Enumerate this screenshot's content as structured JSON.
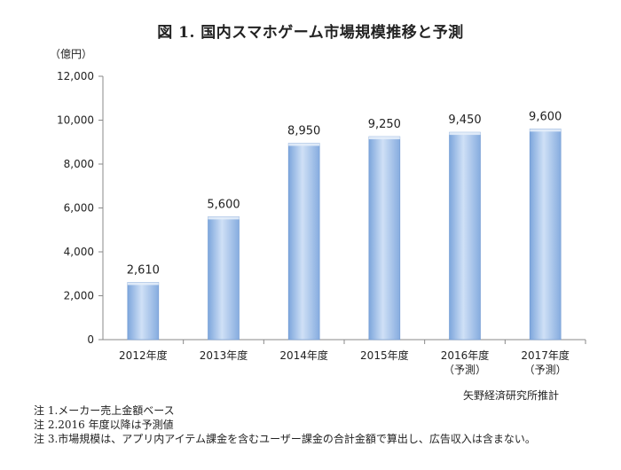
{
  "chart_data": {
    "type": "bar",
    "title": "図 1.  国内スマホゲーム市場規模推移と予測",
    "yunit": "（億円）",
    "ylim": [
      0,
      12000
    ],
    "yticks": [
      0,
      2000,
      4000,
      6000,
      8000,
      10000,
      12000
    ],
    "ytick_labels": [
      "0",
      "2,000",
      "4,000",
      "6,000",
      "8,000",
      "10,000",
      "12,000"
    ],
    "categories": [
      [
        "2012年度"
      ],
      [
        "2013年度"
      ],
      [
        "2014年度"
      ],
      [
        "2015年度"
      ],
      [
        "2016年度",
        "（予測）"
      ],
      [
        "2017年度",
        "（予測）"
      ]
    ],
    "values": [
      2610,
      5600,
      8950,
      9250,
      9450,
      9600
    ],
    "data_labels": [
      "2,610",
      "5,600",
      "8,950",
      "9,250",
      "9,450",
      "9,600"
    ],
    "grid": false,
    "colors": {
      "bar_light": "#cfe0f6",
      "bar_mid": "#9dbfec",
      "bar_dark": "#7da6dc",
      "axis": "#888888"
    }
  },
  "source": "矢野経済研究所推計",
  "notes": [
    "注 1.メーカー売上金額ベース",
    "注 2.2016 年度以降は予測値",
    "注 3.市場規模は、アプリ内アイテム課金を含むユーザー課金の合計金額で算出し、広告収入は含まない。"
  ]
}
